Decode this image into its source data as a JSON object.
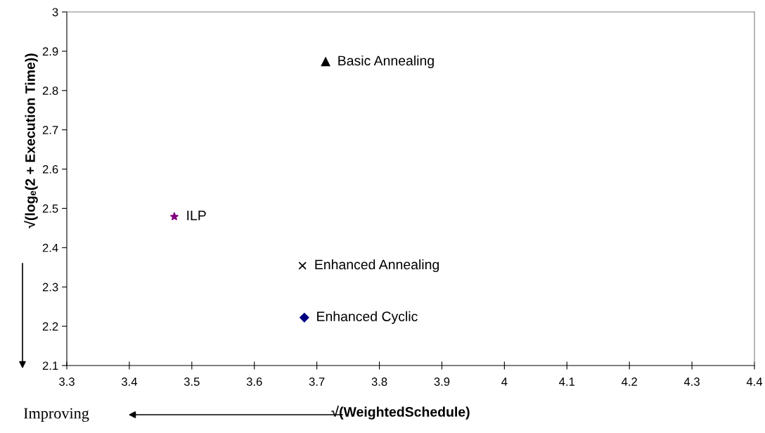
{
  "chart_data": {
    "type": "scatter",
    "xlabel": "√(WeightedSchedule)",
    "ylabel": "√(logₑ(2 + Execution Time))",
    "annotations": [
      "Improving"
    ],
    "xlim": [
      3.3,
      4.4
    ],
    "xticks": [
      3.3,
      3.4,
      3.5,
      3.6,
      3.7,
      3.8,
      3.9,
      4,
      4.1,
      4.2,
      4.3,
      4.4
    ],
    "ylim": [
      2.1,
      3
    ],
    "yticks": [
      2.1,
      2.2,
      2.3,
      2.4,
      2.5,
      2.6,
      2.7,
      2.8,
      2.9,
      3
    ],
    "grid": false,
    "legend": false,
    "series": [
      {
        "name": "Basic Annealing",
        "color": "#000000",
        "marker": "triangle",
        "x": [
          3.714
        ],
        "values": [
          2.873
        ]
      },
      {
        "name": "ILP",
        "color": "#800080",
        "marker": "star",
        "x": [
          3.472
        ],
        "values": [
          2.479
        ]
      },
      {
        "name": "Enhanced Annealing",
        "color": "#000000",
        "marker": "cross",
        "x": [
          3.677
        ],
        "values": [
          2.354
        ]
      },
      {
        "name": "Enhanced Cyclic",
        "color": "#000080",
        "marker": "diamond",
        "x": [
          3.68
        ],
        "values": [
          2.222
        ]
      }
    ]
  }
}
